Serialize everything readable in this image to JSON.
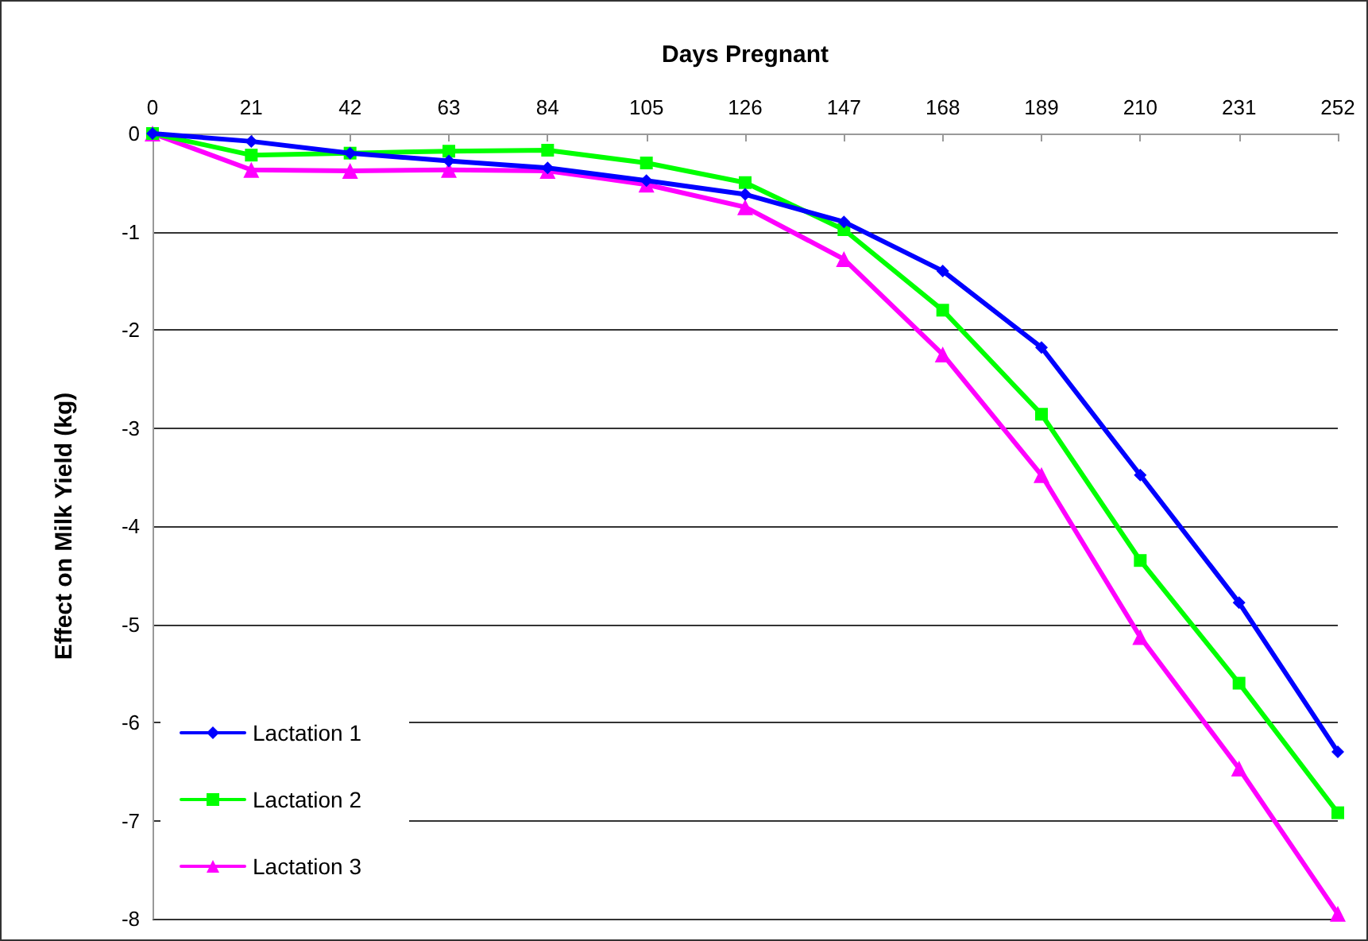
{
  "chart_data": {
    "type": "line",
    "xlabel": "Days Pregnant",
    "ylabel": "Effect on Milk Yield (kg)",
    "x": [
      0,
      21,
      42,
      63,
      84,
      105,
      126,
      147,
      168,
      189,
      210,
      231,
      252
    ],
    "series": [
      {
        "name": "Lactation 1",
        "color": "#0000ff",
        "marker": "diamond",
        "values": [
          0,
          -0.08,
          -0.2,
          -0.28,
          -0.35,
          -0.48,
          -0.62,
          -0.9,
          -1.4,
          -2.18,
          -3.48,
          -4.78,
          -6.3
        ]
      },
      {
        "name": "Lactation 2",
        "color": "#00ff00",
        "marker": "square",
        "values": [
          0,
          -0.22,
          -0.2,
          -0.18,
          -0.17,
          -0.3,
          -0.5,
          -0.98,
          -1.8,
          -2.86,
          -4.35,
          -5.6,
          -6.92
        ]
      },
      {
        "name": "Lactation 3",
        "color": "#ff00ff",
        "marker": "triangle",
        "values": [
          0,
          -0.37,
          -0.38,
          -0.37,
          -0.38,
          -0.52,
          -0.75,
          -1.28,
          -2.25,
          -3.48,
          -5.13,
          -6.47,
          -7.95
        ]
      }
    ],
    "xlim": [
      0,
      252
    ],
    "xticks": [
      0,
      21,
      42,
      63,
      84,
      105,
      126,
      147,
      168,
      189,
      210,
      231,
      252
    ],
    "ylim": [
      -8,
      0
    ],
    "yticks": [
      -8,
      -7,
      -6,
      -5,
      -4,
      -3,
      -2,
      -1,
      0
    ],
    "grid": "y",
    "legend": "bottom left",
    "line_style": "solid"
  }
}
